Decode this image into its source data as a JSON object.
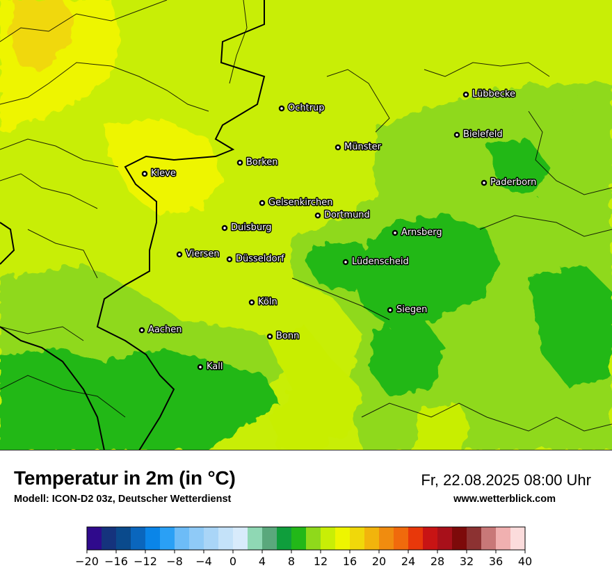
{
  "map": {
    "cities": [
      {
        "name": "Lübbecke"
      },
      {
        "name": "Ochtrup"
      },
      {
        "name": "Bielefeld"
      },
      {
        "name": "Münster"
      },
      {
        "name": "Borken"
      },
      {
        "name": "Kleve"
      },
      {
        "name": "Paderborn"
      },
      {
        "name": "Gelsenkirchen"
      },
      {
        "name": "Dortmund"
      },
      {
        "name": "Duisburg"
      },
      {
        "name": "Arnsberg"
      },
      {
        "name": "Viersen"
      },
      {
        "name": "Düsseldorf"
      },
      {
        "name": "Lüdenscheid"
      },
      {
        "name": "Köln"
      },
      {
        "name": "Siegen"
      },
      {
        "name": "Aachen"
      },
      {
        "name": "Bonn"
      },
      {
        "name": "Kall"
      }
    ]
  },
  "footer": {
    "title": "Temperatur in 2m (in °C)",
    "model": "Modell: ICON-D2 03z, Deutscher Wetterdienst",
    "datetime": "Fr, 22.08.2025 08:00 Uhr",
    "website": "www.wetterblick.com"
  },
  "legend": {
    "tick_labels": [
      "−20",
      "−16",
      "−12",
      "−8",
      "−4",
      "0",
      "4",
      "8",
      "12",
      "16",
      "20",
      "24",
      "28",
      "32",
      "36",
      "40"
    ],
    "colors": [
      "#2f0a8c",
      "#15337d",
      "#0a4a8c",
      "#0a66bd",
      "#0a85e8",
      "#2aa0f5",
      "#6dbcf7",
      "#8fcaf7",
      "#a9d5f7",
      "#c4e2f9",
      "#d8ebfb",
      "#8fd8b4",
      "#5aa87c",
      "#0f9e3c",
      "#22b818",
      "#8fd91b",
      "#c8ee06",
      "#eef500",
      "#f0d80a",
      "#f2b40c",
      "#f08c0f",
      "#f06a0c",
      "#e8380a",
      "#c81414",
      "#a8101a",
      "#7d0a0a",
      "#8c3232",
      "#c87878",
      "#f0b0b0",
      "#fbdcdc"
    ]
  }
}
